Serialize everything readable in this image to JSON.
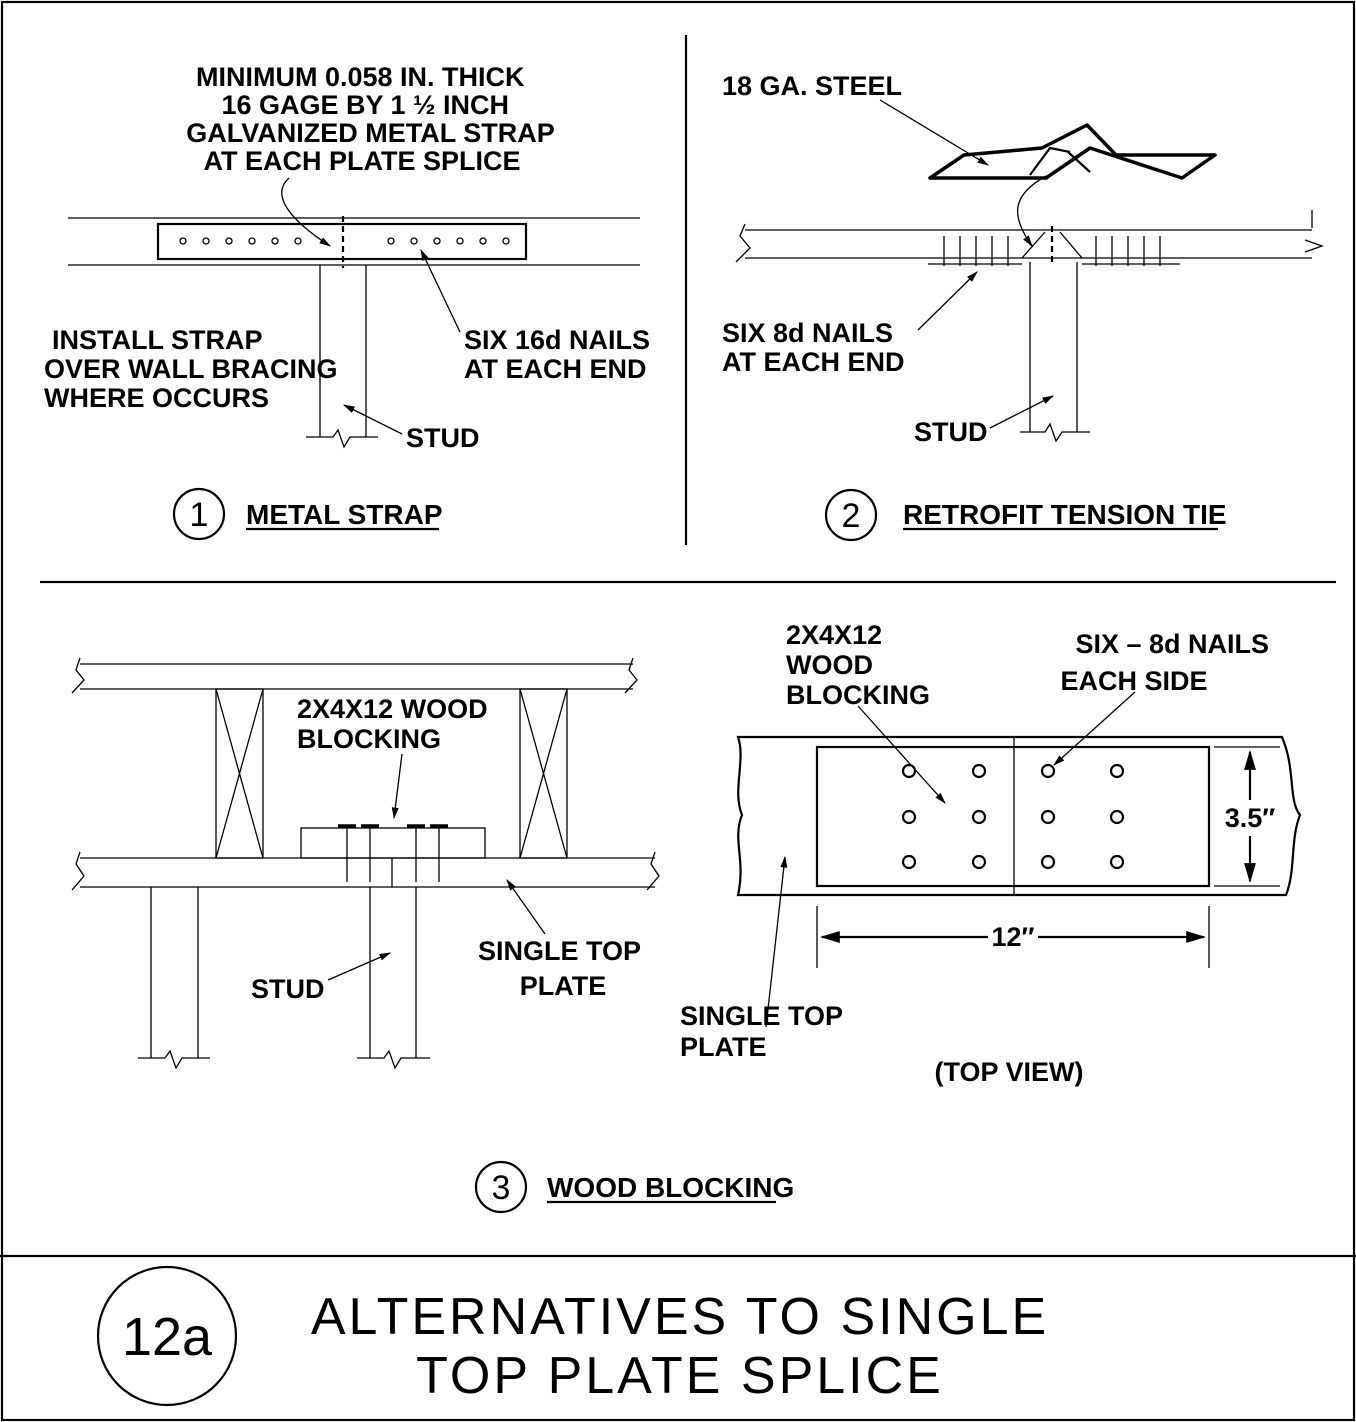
{
  "sheet": {
    "badge": "12a",
    "title_line1": "ALTERNATIVES TO SINGLE",
    "title_line2": "TOP PLATE SPLICE"
  },
  "detail1": {
    "number": "1",
    "title": "METAL STRAP",
    "note_strap": [
      "MINIMUM 0.058 IN. THICK",
      "16 GAGE BY 1 ½ INCH",
      "GALVANIZED METAL STRAP",
      "AT EACH PLATE SPLICE"
    ],
    "note_install": [
      "INSTALL STRAP",
      "OVER WALL BRACING",
      "WHERE OCCURS"
    ],
    "note_nails": [
      "SIX 16d NAILS",
      "AT EACH END"
    ],
    "note_stud": "STUD"
  },
  "detail2": {
    "number": "2",
    "title": "RETROFIT TENSION TIE",
    "note_steel": "18 GA. STEEL",
    "note_nails": [
      "SIX 8d NAILS",
      "AT EACH END"
    ],
    "note_stud": "STUD"
  },
  "detail3": {
    "number": "3",
    "title": "WOOD BLOCKING",
    "side": {
      "note_blocking": [
        "2X4X12 WOOD",
        "BLOCKING"
      ],
      "note_stud": "STUD",
      "note_plate": [
        "SINGLE TOP",
        "PLATE"
      ]
    },
    "top": {
      "note_blocking": [
        "2X4X12",
        "WOOD",
        "BLOCKING"
      ],
      "note_nails": [
        "SIX – 8d NAILS",
        "EACH SIDE"
      ],
      "dim_width": "3.5″",
      "dim_length": "12″",
      "note_plate": [
        "SINGLE TOP",
        "PLATE"
      ],
      "caption": "(TOP VIEW)"
    }
  }
}
